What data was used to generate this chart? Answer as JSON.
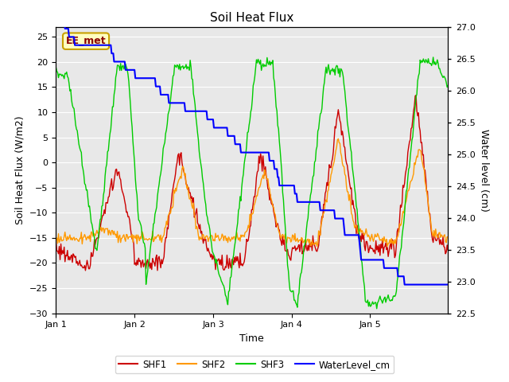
{
  "title": "Soil Heat Flux",
  "xlabel": "Time",
  "ylabel_left": "Soil Heat Flux (W/m2)",
  "ylabel_right": "Water level (cm)",
  "annotation": "EE_met",
  "annotation_color": "#8B0000",
  "annotation_bg": "#FFFFC0",
  "annotation_border": "#C8A000",
  "ylim_left": [
    -30,
    27
  ],
  "ylim_right": [
    22.5,
    27.0
  ],
  "yticks_left": [
    -30,
    -25,
    -20,
    -15,
    -10,
    -5,
    0,
    5,
    10,
    15,
    20,
    25
  ],
  "yticks_right": [
    22.5,
    23.0,
    23.5,
    24.0,
    24.5,
    25.0,
    25.5,
    26.0,
    26.5,
    27.0
  ],
  "xtick_labels": [
    "Jan 1",
    "Jan 2",
    "Jan 3",
    "Jan 4",
    "Jan 5"
  ],
  "xtick_positions": [
    0,
    96,
    192,
    288,
    384
  ],
  "total_points": 480,
  "colors": {
    "SHF1": "#CC0000",
    "SHF2": "#FF9900",
    "SHF3": "#00CC00",
    "WaterLevel": "#0000FF"
  },
  "legend_labels": [
    "SHF1",
    "SHF2",
    "SHF3",
    "WaterLevel_cm"
  ],
  "bg_color": "#E8E8E8",
  "grid_color": "#FFFFFF",
  "figsize": [
    6.4,
    4.8
  ],
  "dpi": 100
}
